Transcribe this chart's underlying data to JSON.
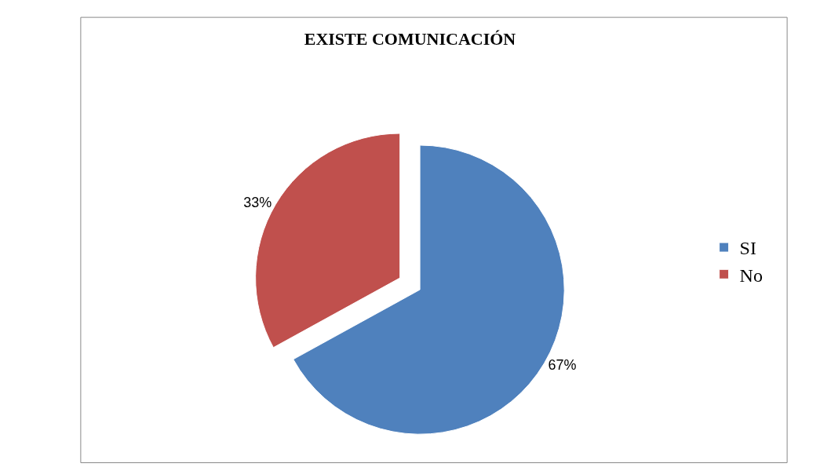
{
  "chart_data": {
    "type": "pie",
    "title": "EXISTE COMUNICACIÓN",
    "categories": [
      "SI",
      "No"
    ],
    "values": [
      67,
      33
    ],
    "colors": [
      "#4f81bd",
      "#c0504d"
    ],
    "value_labels": [
      "67%",
      "33%"
    ],
    "legend": "right"
  }
}
